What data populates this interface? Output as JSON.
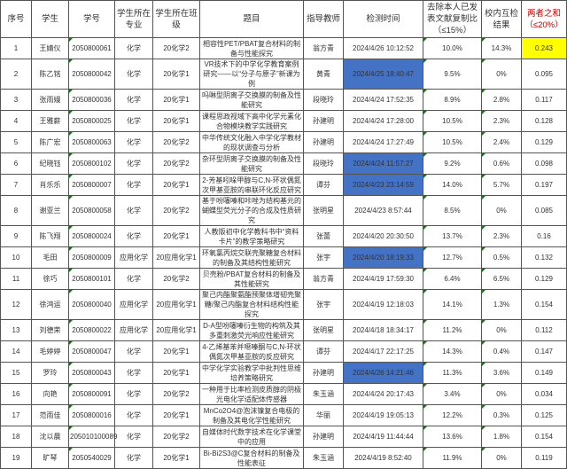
{
  "headers": [
    "序号",
    "学生",
    "学号",
    "学生所在专业",
    "学生所在班级",
    "题目",
    "指导教师",
    "检测时间",
    "去除本人已发表文献复制比（≤15%）",
    "校内互检结果",
    "两者之和（≤20%）"
  ],
  "colors": {
    "highlight_blue": "#4472c4",
    "highlight_yellow": "#ffff00"
  },
  "rows": [
    [
      "1",
      "王婧仪",
      "2050800061",
      "化学",
      "20化学2",
      "相容性PET/PBAT复合材料的制备与性能探究",
      "翁方青",
      "2024/4/26 10:12:52",
      "10.0%",
      "14.3%",
      "0.243"
    ],
    [
      "2",
      "陈乙铭",
      "2050800042",
      "化学",
      "20化学1",
      "VR技术下的中学化学教育案例研究——以“分子与原子”新课为例",
      "黄青",
      "2024/4/25 18:40:47",
      "9.5%",
      "0%",
      "0.095"
    ],
    [
      "3",
      "张雨嫚",
      "2050800036",
      "化学",
      "20化学1",
      "吗啉型阴离子交换膜的制备及性能研究",
      "段晓玲",
      "2024/4/24 17:52:35",
      "8.9%",
      "2.8%",
      "0.117"
    ],
    [
      "4",
      "王雅薪",
      "2050800025",
      "化学",
      "20化学1",
      "课程思政视域下高中化学元素化合物模块教学实践研究",
      "孙建明",
      "2024/4/24 17:28:00",
      "10.5%",
      "2.3%",
      "0.128"
    ],
    [
      "5",
      "陈广宏",
      "2050800063",
      "化学",
      "20化学2",
      "中华传统文化融入中学化学教材的现状调查与分析",
      "孙建明",
      "2024/4/24 17:27:49",
      "10.5%",
      "2.4%",
      "0.129"
    ],
    [
      "6",
      "纪晓钰",
      "2050800102",
      "化学",
      "20化学2",
      "杂环型阴离子交换膜的制备及性能研究",
      "段晓玲",
      "2024/4/24 11:57:27",
      "9.2%",
      "0.6%",
      "0.098"
    ],
    [
      "7",
      "肖乐乐",
      "2050800007",
      "化学",
      "20化学1",
      "2-芳基吲哚甲醇与C,N-环状偶氮次甲基亚胺的串联环化反应研究",
      "谭芬",
      "2024/4/23 23:14:59",
      "14.0%",
      "5.7%",
      "0.197"
    ],
    [
      "8",
      "谢亚兰",
      "2050800058",
      "化学",
      "20化学2",
      "基于吩噻嗪和咔唑为结构基元的蝴蝶型荧光分子的合成及性质研究",
      "张明星",
      "2024/4/23 8:57:44",
      "8.5%",
      "0%",
      "0.085"
    ],
    [
      "9",
      "陈飞翔",
      "2050800024",
      "化学",
      "20化学1",
      "人教版初中化学教科书中“资料卡片”的教学策略研究",
      "张蕾",
      "2024/4/20 20:30:50",
      "13.7%",
      "2.3%",
      "0.16"
    ],
    [
      "10",
      "毛田",
      "2050800009",
      "应用化学",
      "20应用化学1",
      "环氧氯丙烷交联壳聚糖复合材料的制备及其结构性能研究",
      "张宇",
      "2024/4/20 18:19:33",
      "12.7%",
      "0.5%",
      "0.132"
    ],
    [
      "11",
      "徐巧",
      "2050800101",
      "化学",
      "20化学2",
      "贝壳粉/PBAT复合材料的制备及其性能研究",
      "翁方青",
      "2024/4/19 17:59:30",
      "6.4%",
      "6.5%",
      "0.129"
    ],
    [
      "12",
      "徐鸿运",
      "2050800040",
      "应用化学",
      "20应用化学1",
      "聚己内酯聚氨酯预聚体增韧壳聚糖/聚己内酯复合材料结构性能探究",
      "张宇",
      "2024/4/19 12:18:03",
      "14.1%",
      "1.3%",
      "0.154"
    ],
    [
      "13",
      "刘德荣",
      "2050800022",
      "应用化学",
      "20应用化学1",
      "D-A型吩噻嗪衍生物的构筑及其多重刺激荧光响应性能研究",
      "张明星",
      "2024/4/18 18:34:17",
      "11.2%",
      "0%",
      "0.112"
    ],
    [
      "14",
      "毛婷婷",
      "2050800047",
      "化学",
      "20化学1",
      "4-乙烯基苯并噁嗪酮与C,N-环状偶氮次甲基亚胺的反应研究",
      "谭芬",
      "2024/4/17 22:17:25",
      "14.3%",
      "0.4%",
      "0.147"
    ],
    [
      "15",
      "罗玲",
      "2050800043",
      "化学",
      "20化学1",
      "中学化学实验教学中批判性思维培养策略研究",
      "孙建明",
      "2024/4/26 14:21:46",
      "11.3%",
      "3.6%",
      "0.149"
    ],
    [
      "16",
      "向艳",
      "2050800091",
      "化学",
      "20化学2",
      "一种用于比率检测皮质醇的阴极光电化学适配体传感器",
      "朱玉涵",
      "2024/4/24 20:17:43",
      "3.4%",
      "0%",
      "0.034"
    ],
    [
      "17",
      "范雨佳",
      "2050800016",
      "化学",
      "20化学1",
      "MnCo2O4@泡沫镍复合电极的制备及其电化学性能研究",
      "华丽",
      "2024/4/19 19:05:13",
      "12.2%",
      "0.3%",
      "0.125"
    ],
    [
      "18",
      "沈以晨",
      "205010100089",
      "化学",
      "20化学2",
      "自媒体时代数字技术在化学课堂中的应用",
      "孙建明",
      "2024/4/19 11:44:44",
      "13.6%",
      "1.8%",
      "0.154"
    ],
    [
      "19",
      "旷琴",
      "2050540029",
      "化学",
      "20化学1",
      "Bi-Bi2S3@C复合材料的制备及性能表征",
      "朱玉涵",
      "2024/4/19 8:52:40",
      "11.9%",
      "0%",
      "0.119"
    ]
  ],
  "blue_time_rows": [
    2,
    6,
    7,
    10,
    15
  ],
  "yellow_sum_rows": [
    1
  ]
}
